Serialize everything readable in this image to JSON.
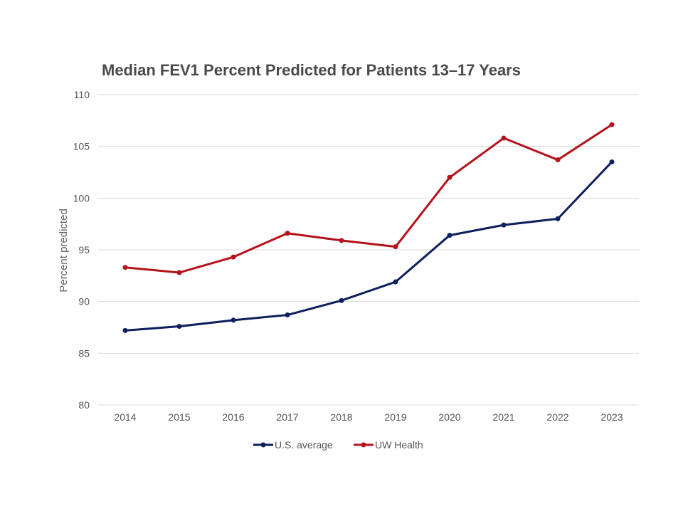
{
  "chart_data": {
    "type": "line",
    "title": "Median FEV1 Percent Predicted for Patients 13–17 Years",
    "xlabel": "",
    "ylabel": "Percent predicted",
    "categories": [
      "2014",
      "2015",
      "2016",
      "2017",
      "2018",
      "2019",
      "2020",
      "2021",
      "2022",
      "2023"
    ],
    "ylim": [
      80,
      110
    ],
    "yticks": [
      80,
      85,
      90,
      95,
      100,
      105,
      110
    ],
    "grid": true,
    "legend_position": "bottom-center",
    "series": [
      {
        "name": "U.S. average",
        "color": "#0d1f5c",
        "values": [
          87.2,
          87.6,
          88.2,
          88.7,
          90.1,
          91.9,
          96.4,
          97.4,
          98.0,
          103.5
        ]
      },
      {
        "name": "UW Health",
        "color": "#b5121b",
        "values": [
          93.3,
          92.8,
          94.3,
          96.6,
          95.9,
          95.3,
          102.0,
          105.8,
          103.7,
          107.1
        ]
      }
    ]
  }
}
